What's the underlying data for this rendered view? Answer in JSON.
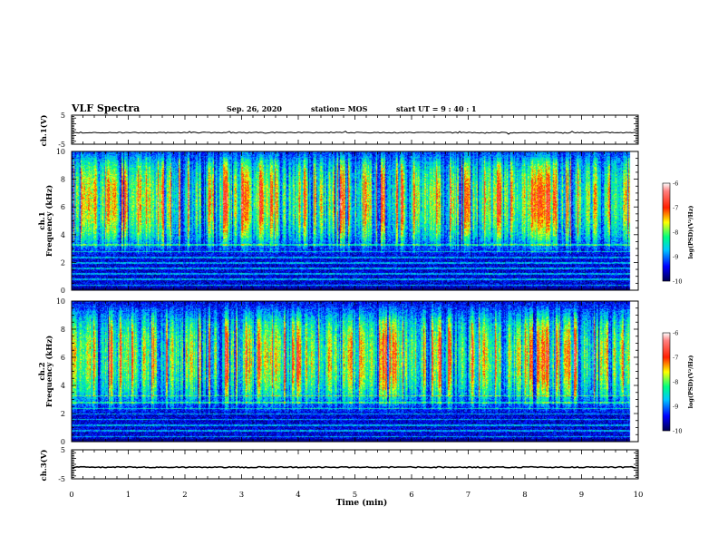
{
  "header": {
    "title": "VLF Spectra",
    "date": "Sep. 26, 2020",
    "station": "station= MOS",
    "start": "start  UT =   9 : 40 : 1"
  },
  "chart_data": [
    {
      "type": "line",
      "panel": "ch1-waveform",
      "ylabel": "ch.1(V)",
      "ylim": [
        -5,
        5
      ],
      "y_ticks": [
        "5",
        "-5"
      ],
      "xlim": [
        0,
        10
      ],
      "series": [
        {
          "values_description_only": false,
          "level": -1.0
        }
      ]
    },
    {
      "type": "heatmap",
      "panel": "ch1-spectrogram",
      "ylabel_top": "ch.1",
      "ylabel": "Frequency  (kHz)",
      "ylim": [
        0,
        10
      ],
      "y_ticks": [
        "0",
        "2",
        "4",
        "6",
        "8",
        "10"
      ],
      "xlim": [
        0,
        10
      ],
      "intense_band_khz": [
        4,
        9
      ],
      "data_end_min": 9.85,
      "colorbar": {
        "label": "log(PSD)(V²/Hz)",
        "range": [
          -10,
          -6
        ],
        "ticks": [
          "-6",
          "-7",
          "-8",
          "-9",
          "-10"
        ]
      }
    },
    {
      "type": "heatmap",
      "panel": "ch2-spectrogram",
      "ylabel_top": "ch.2",
      "ylabel": "Frequency  (kHz)",
      "ylim": [
        0,
        10
      ],
      "y_ticks": [
        "0",
        "2",
        "4",
        "6",
        "8",
        "10"
      ],
      "xlim": [
        0,
        10
      ],
      "intense_band_khz": [
        3.5,
        8.5
      ],
      "data_end_min": 9.85,
      "colorbar": {
        "label": "log(PSD)(V²/Hz)",
        "range": [
          -10,
          -6
        ],
        "ticks": [
          "-6",
          "-7",
          "-8",
          "-9",
          "-10"
        ]
      }
    },
    {
      "type": "line",
      "panel": "ch3-waveform",
      "ylabel": "ch.3(V)",
      "ylim": [
        -5,
        5
      ],
      "y_ticks": [
        "5",
        "-5"
      ],
      "xlim": [
        0,
        10
      ],
      "series": [
        {
          "level": -1.0
        }
      ]
    }
  ],
  "xaxis": {
    "label": "Time  (min)",
    "ticks": [
      "0",
      "1",
      "2",
      "3",
      "4",
      "5",
      "6",
      "7",
      "8",
      "9",
      "10"
    ]
  },
  "colors": {
    "colormap": [
      "#000060",
      "#0000ff",
      "#00c8ff",
      "#00ff80",
      "#ffff00",
      "#ff2000",
      "#ffffff"
    ]
  }
}
